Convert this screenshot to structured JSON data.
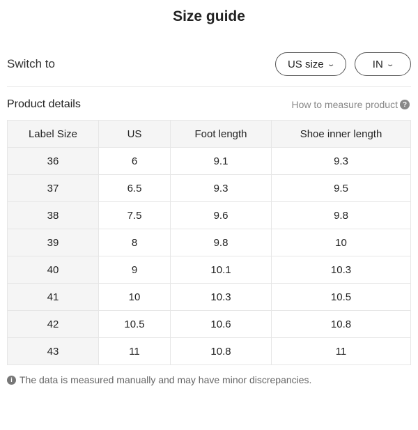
{
  "title": "Size guide",
  "switch_label": "Switch to",
  "size_select": {
    "value": "US size",
    "icon": "chevron-down-icon"
  },
  "unit_select": {
    "value": "IN",
    "icon": "chevron-down-icon"
  },
  "section_title": "Product details",
  "how_to_measure": "How to measure product",
  "help_icon_glyph": "?",
  "info_icon_glyph": "i",
  "table": {
    "headers": [
      "Label Size",
      "US",
      "Foot length",
      "Shoe inner length"
    ],
    "rows": [
      [
        "36",
        "6",
        "9.1",
        "9.3"
      ],
      [
        "37",
        "6.5",
        "9.3",
        "9.5"
      ],
      [
        "38",
        "7.5",
        "9.6",
        "9.8"
      ],
      [
        "39",
        "8",
        "9.8",
        "10"
      ],
      [
        "40",
        "9",
        "10.1",
        "10.3"
      ],
      [
        "41",
        "10",
        "10.3",
        "10.5"
      ],
      [
        "42",
        "10.5",
        "10.6",
        "10.8"
      ],
      [
        "43",
        "11",
        "10.8",
        "11"
      ]
    ]
  },
  "note": "The data is measured manually and may have minor discrepancies."
}
